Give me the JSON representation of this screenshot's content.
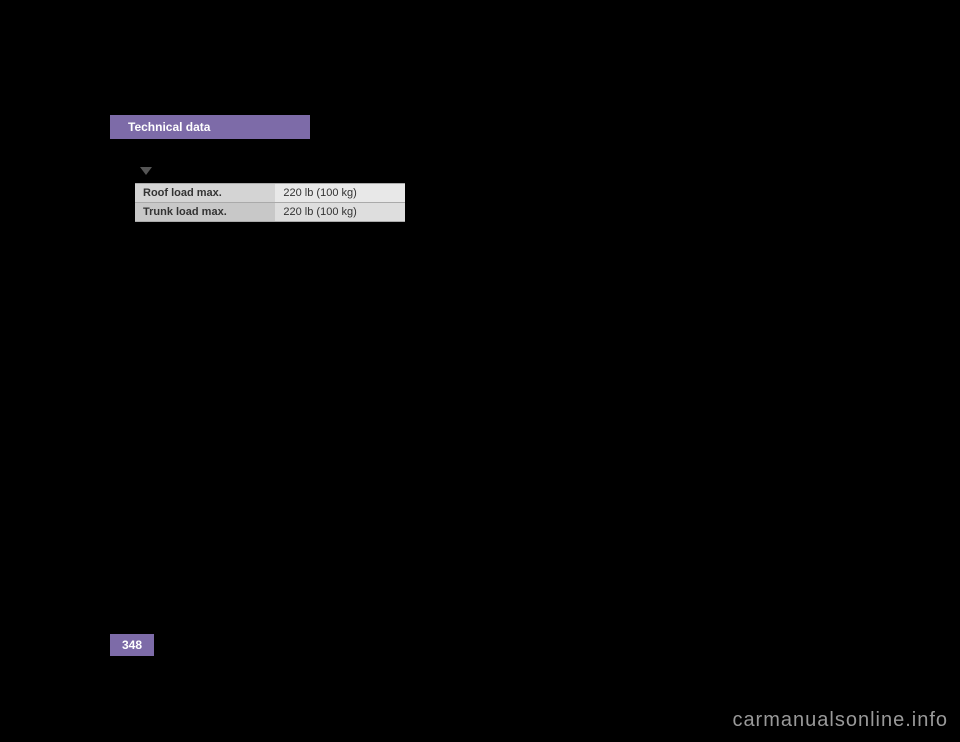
{
  "header": {
    "title": "Technical data"
  },
  "loadTable": {
    "rows": [
      {
        "label": "Roof load max.",
        "value": "220 lb (100 kg)"
      },
      {
        "label": "Trunk load max.",
        "value": "220 lb (100 kg)"
      }
    ]
  },
  "footer": {
    "pageNumber": "348"
  },
  "watermark": "carmanualsonline.info"
}
